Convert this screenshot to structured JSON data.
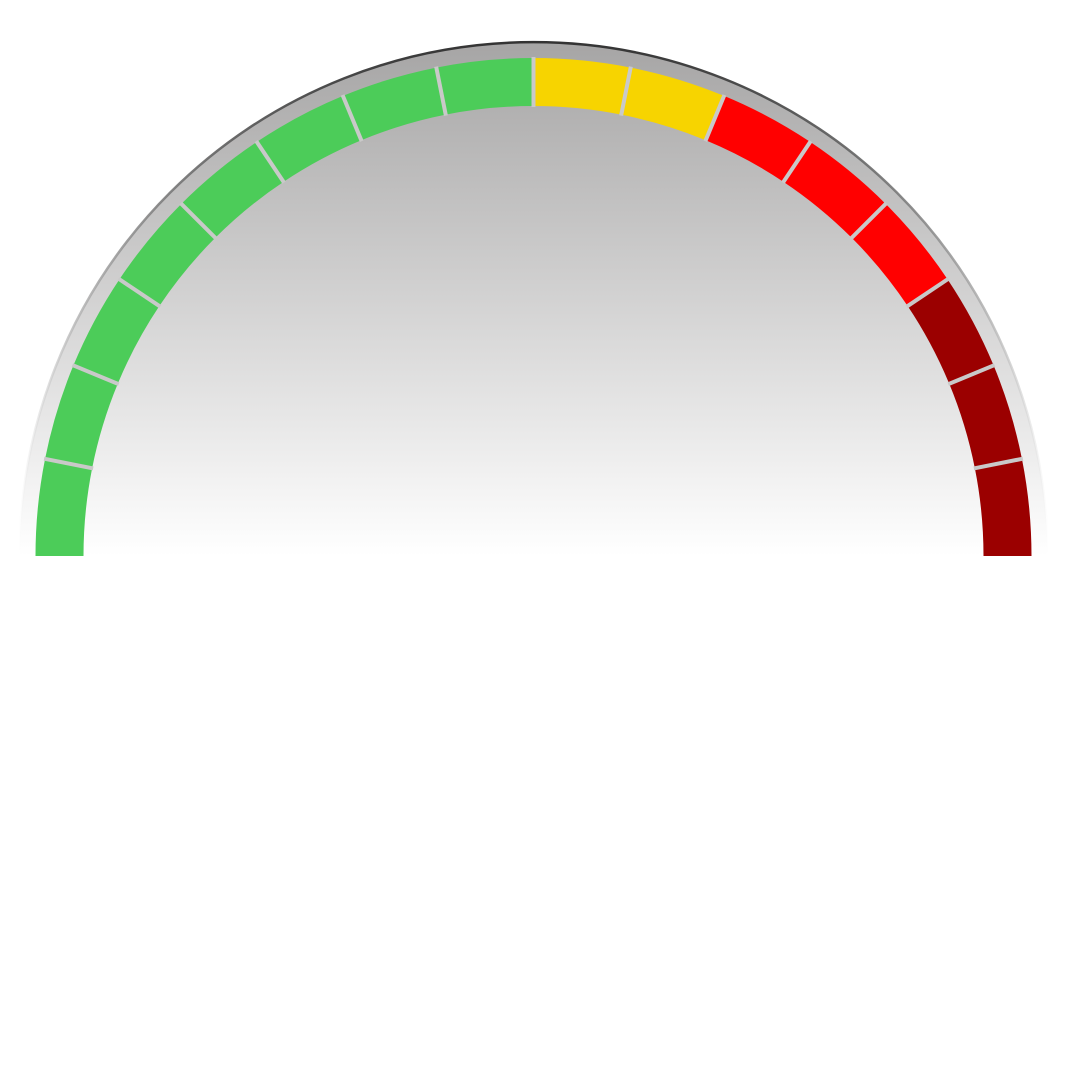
{
  "chart_data": {
    "type": "gauge",
    "range": [
      0,
      100
    ],
    "segment_count": 16,
    "bands": [
      {
        "from": 0,
        "to": 50,
        "color": "#4ccc59"
      },
      {
        "from": 50,
        "to": 62.5,
        "color": "#f7d400"
      },
      {
        "from": 62.5,
        "to": 81.25,
        "color": "#ff0000"
      },
      {
        "from": 81.25,
        "to": 100,
        "color": "#9b0000"
      }
    ],
    "colors": {
      "separator": "#c9c9c9",
      "rim": "#333333",
      "face_top": "#a6a5a5",
      "face_bottom": "#ffffff"
    }
  }
}
